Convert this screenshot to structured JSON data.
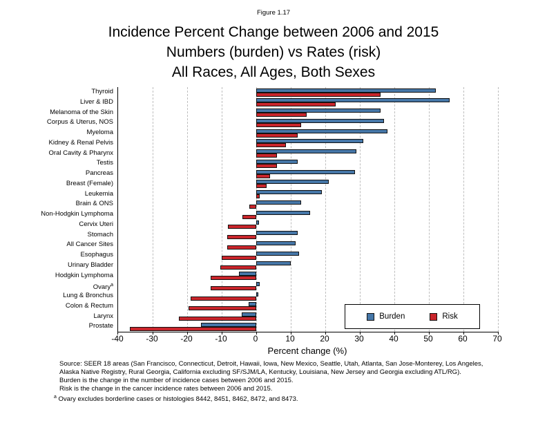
{
  "figure_label": "Figure 1.17",
  "title_lines": [
    "Incidence Percent Change between 2006 and 2015",
    "Numbers (burden) vs Rates (risk)",
    "All Races, All Ages, Both Sexes"
  ],
  "chart_data": {
    "type": "bar",
    "orientation": "horizontal",
    "title": "Incidence Percent Change between 2006 and 2015, Numbers (burden) vs Rates (risk), All Races, All Ages, Both Sexes",
    "xlabel": "Percent change (%)",
    "xlim": [
      -40,
      70
    ],
    "xticks": [
      -40,
      -30,
      -20,
      -10,
      0,
      10,
      20,
      30,
      40,
      50,
      60,
      70
    ],
    "grid": "dashed-vertical-at-ticks",
    "legend_position": "inside-bottom-right",
    "categories": [
      "Thyroid",
      "Liver & IBD",
      "Melanoma of the Skin",
      "Corpus & Uterus, NOS",
      "Myeloma",
      "Kidney & Renal Pelvis",
      "Oral Cavity & Pharynx",
      "Testis",
      "Pancreas",
      "Breast (Female)",
      "Leukemia",
      "Brain & ONS",
      "Non-Hodgkin Lymphoma",
      "Cervix Uteri",
      "Stomach",
      "All Cancer Sites",
      "Esophagus",
      "Urinary Bladder",
      "Hodgkin Lymphoma",
      "Ovary",
      "Lung & Bronchus",
      "Colon & Rectum",
      "Larynx",
      "Prostate"
    ],
    "category_superscripts": {
      "19": "a"
    },
    "series": [
      {
        "name": "Burden",
        "color": "#4677a8",
        "values": [
          52,
          56,
          36,
          37,
          38,
          31,
          29,
          12,
          28.5,
          21,
          19,
          13,
          15.5,
          0.7,
          12,
          11.3,
          12.3,
          10,
          -5,
          1,
          0.5,
          -2.2,
          -4.2,
          -16
        ]
      },
      {
        "name": "Risk",
        "color": "#c9252b",
        "values": [
          36,
          23,
          14.5,
          13,
          12,
          8.5,
          6,
          6,
          4,
          3,
          1,
          -2,
          -4,
          -8.3,
          -8.5,
          -8.5,
          -10,
          -10.5,
          -13.2,
          -13.2,
          -19,
          -19.7,
          -22.5,
          -36.7
        ]
      }
    ]
  },
  "legend": {
    "burden_label": "Burden",
    "risk_label": "Risk"
  },
  "colors": {
    "burden_blue": "#4677a8",
    "risk_red": "#c9252b",
    "gridline_gray": "#bdbdbd"
  },
  "footnotes": {
    "lines": [
      "Source: SEER 18 areas (San Francisco, Connecticut, Detroit, Hawaii, Iowa, New Mexico, Seattle, Utah, Atlanta, San Jose-Monterey, Los Angeles,",
      "Alaska Native Registry, Rural Georgia, California excluding SF/SJM/LA, Kentucky, Louisiana, New Jersey and Georgia excluding ATL/RG).",
      "Burden is the change in the number of incidence cases between 2006 and 2015.",
      "Risk is the change in the cancer incidence rates between 2006 and 2015."
    ],
    "ovary_note": {
      "marker": "a",
      "text": "Ovary excludes borderline cases or histologies 8442, 8451, 8462, 8472, and 8473."
    }
  }
}
